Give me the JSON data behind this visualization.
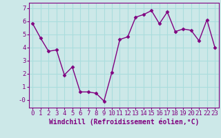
{
  "x": [
    0,
    1,
    2,
    3,
    4,
    5,
    6,
    7,
    8,
    9,
    10,
    11,
    12,
    13,
    14,
    15,
    16,
    17,
    18,
    19,
    20,
    21,
    22,
    23
  ],
  "y": [
    5.8,
    4.7,
    3.7,
    3.8,
    1.9,
    2.5,
    0.6,
    0.6,
    0.5,
    -0.1,
    2.1,
    4.6,
    4.8,
    6.3,
    6.5,
    6.8,
    5.8,
    6.7,
    5.2,
    5.4,
    5.3,
    4.5,
    6.1,
    4.0
  ],
  "line_color": "#800080",
  "marker": "D",
  "marker_size": 2.5,
  "line_width": 1.0,
  "bg_color": "#cce8e8",
  "grid_color": "#aadddd",
  "xlabel": "Windchill (Refroidissement éolien,°C)",
  "xlabel_color": "#800080",
  "tick_color": "#800080",
  "ylim": [
    -0.6,
    7.4
  ],
  "xlim": [
    -0.5,
    23.5
  ],
  "yticks": [
    0,
    1,
    2,
    3,
    4,
    5,
    6,
    7
  ],
  "ytick_labels": [
    "-0",
    "1",
    "2",
    "3",
    "4",
    "5",
    "6",
    "7"
  ],
  "xticks": [
    0,
    1,
    2,
    3,
    4,
    5,
    6,
    7,
    8,
    9,
    10,
    11,
    12,
    13,
    14,
    15,
    16,
    17,
    18,
    19,
    20,
    21,
    22,
    23
  ],
  "xlabel_fontsize": 7,
  "tick_fontsize": 6.5
}
